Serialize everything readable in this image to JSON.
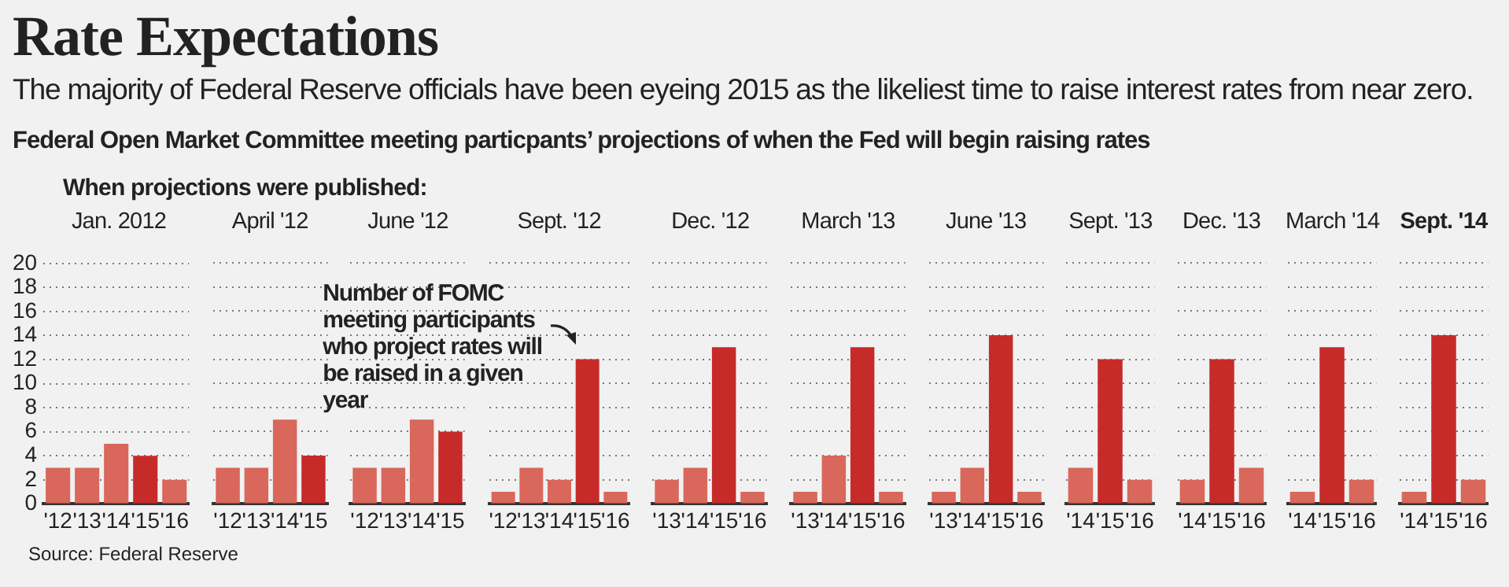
{
  "chart_data": [
    {
      "type": "other",
      "title": "Rate Expectations",
      "subtitle": "The majority of Federal Reserve officials have been eyeing 2015 as the likeliest time to raise interest rates from near zero.",
      "annotations": [
        "Federal Open Market Committee meeting particpants’ projections of when the Fed will begin raising rates",
        "When projections were published:",
        "Source: Federal Reserve"
      ]
    },
    {
      "type": "bar",
      "title": "Jan. 2012",
      "categories": [
        "'12",
        "'13",
        "'14",
        "'15",
        "'16"
      ],
      "values": [
        3,
        3,
        5,
        4,
        2
      ],
      "colors": [
        "#d9675b",
        "#d9675b",
        "#d9675b",
        "#c62b29",
        "#d9675b"
      ],
      "ylim": [
        0,
        20
      ],
      "yticks": [
        0,
        2,
        4,
        6,
        8,
        10,
        12,
        14,
        16,
        18,
        20
      ],
      "grid": "y"
    },
    {
      "type": "bar",
      "title": "April '12",
      "categories": [
        "'12",
        "'13",
        "'14",
        "'15"
      ],
      "values": [
        3,
        3,
        7,
        4
      ],
      "colors": [
        "#d9675b",
        "#d9675b",
        "#d9675b",
        "#c62b29"
      ],
      "ylim": [
        0,
        20
      ],
      "yticks": [
        0,
        2,
        4,
        6,
        8,
        10,
        12,
        14,
        16,
        18,
        20
      ],
      "grid": "y",
      "tick_labels": "x"
    },
    {
      "type": "bar",
      "title": "June '12",
      "categories": [
        "'12",
        "'13",
        "'14",
        "'15"
      ],
      "values": [
        3,
        3,
        7,
        6
      ],
      "colors": [
        "#d9675b",
        "#d9675b",
        "#d9675b",
        "#c62b29"
      ],
      "ylim": [
        0,
        20
      ],
      "yticks": [
        0,
        2,
        4,
        6,
        8,
        10,
        12,
        14,
        16,
        18,
        20
      ],
      "grid": "y",
      "tick_labels": "x"
    },
    {
      "type": "bar",
      "title": "Sept. '12",
      "categories": [
        "'12",
        "'13",
        "'14",
        "'15",
        "'16"
      ],
      "values": [
        1,
        3,
        2,
        12,
        1
      ],
      "colors": [
        "#d9675b",
        "#d9675b",
        "#d9675b",
        "#c62b29",
        "#d9675b"
      ],
      "ylim": [
        0,
        20
      ],
      "yticks": [
        0,
        2,
        4,
        6,
        8,
        10,
        12,
        14,
        16,
        18,
        20
      ],
      "grid": "y",
      "tick_labels": "x",
      "annotations": [
        {
          "text": "Number of FOMC meeting participants who project rates will be raised in a given year",
          "x": "'15",
          "y": 12
        }
      ]
    },
    {
      "type": "bar",
      "title": "Dec. '12",
      "categories": [
        "'13",
        "'14",
        "'15",
        "'16"
      ],
      "values": [
        2,
        3,
        13,
        1
      ],
      "colors": [
        "#d9675b",
        "#d9675b",
        "#c62b29",
        "#d9675b"
      ],
      "ylim": [
        0,
        20
      ],
      "yticks": [
        0,
        2,
        4,
        6,
        8,
        10,
        12,
        14,
        16,
        18,
        20
      ],
      "grid": "y",
      "tick_labels": "x"
    },
    {
      "type": "bar",
      "title": "March '13",
      "categories": [
        "'13",
        "'14",
        "'15",
        "'16"
      ],
      "values": [
        1,
        4,
        13,
        1
      ],
      "colors": [
        "#d9675b",
        "#d9675b",
        "#c62b29",
        "#d9675b"
      ],
      "ylim": [
        0,
        20
      ],
      "yticks": [
        0,
        2,
        4,
        6,
        8,
        10,
        12,
        14,
        16,
        18,
        20
      ],
      "grid": "y",
      "tick_labels": "x"
    },
    {
      "type": "bar",
      "title": "June '13",
      "categories": [
        "'13",
        "'14",
        "'15",
        "'16"
      ],
      "values": [
        1,
        3,
        14,
        1
      ],
      "colors": [
        "#d9675b",
        "#d9675b",
        "#c62b29",
        "#d9675b"
      ],
      "ylim": [
        0,
        20
      ],
      "yticks": [
        0,
        2,
        4,
        6,
        8,
        10,
        12,
        14,
        16,
        18,
        20
      ],
      "grid": "y",
      "tick_labels": "x"
    },
    {
      "type": "bar",
      "title": "Sept. '13",
      "categories": [
        "'14",
        "'15",
        "'16"
      ],
      "values": [
        3,
        12,
        2
      ],
      "colors": [
        "#d9675b",
        "#c62b29",
        "#d9675b"
      ],
      "ylim": [
        0,
        20
      ],
      "yticks": [
        0,
        2,
        4,
        6,
        8,
        10,
        12,
        14,
        16,
        18,
        20
      ],
      "grid": "y",
      "tick_labels": "x"
    },
    {
      "type": "bar",
      "title": "Dec. '13",
      "categories": [
        "'14",
        "'15",
        "'16"
      ],
      "values": [
        2,
        12,
        3
      ],
      "colors": [
        "#d9675b",
        "#c62b29",
        "#d9675b"
      ],
      "ylim": [
        0,
        20
      ],
      "yticks": [
        0,
        2,
        4,
        6,
        8,
        10,
        12,
        14,
        16,
        18,
        20
      ],
      "grid": "y",
      "tick_labels": "x"
    },
    {
      "type": "bar",
      "title": "March '14",
      "categories": [
        "'14",
        "'15",
        "'16"
      ],
      "values": [
        1,
        13,
        2
      ],
      "colors": [
        "#d9675b",
        "#c62b29",
        "#d9675b"
      ],
      "ylim": [
        0,
        20
      ],
      "yticks": [
        0,
        2,
        4,
        6,
        8,
        10,
        12,
        14,
        16,
        18,
        20
      ],
      "grid": "y",
      "tick_labels": "x"
    },
    {
      "type": "bar",
      "title": "Sept. '14",
      "categories": [
        "'14",
        "'15",
        "'16"
      ],
      "values": [
        1,
        14,
        2
      ],
      "colors": [
        "#d9675b",
        "#c62b29",
        "#d9675b"
      ],
      "ylim": [
        0,
        20
      ],
      "yticks": [
        0,
        2,
        4,
        6,
        8,
        10,
        12,
        14,
        16,
        18,
        20
      ],
      "grid": "y",
      "tick_labels": "x"
    }
  ]
}
